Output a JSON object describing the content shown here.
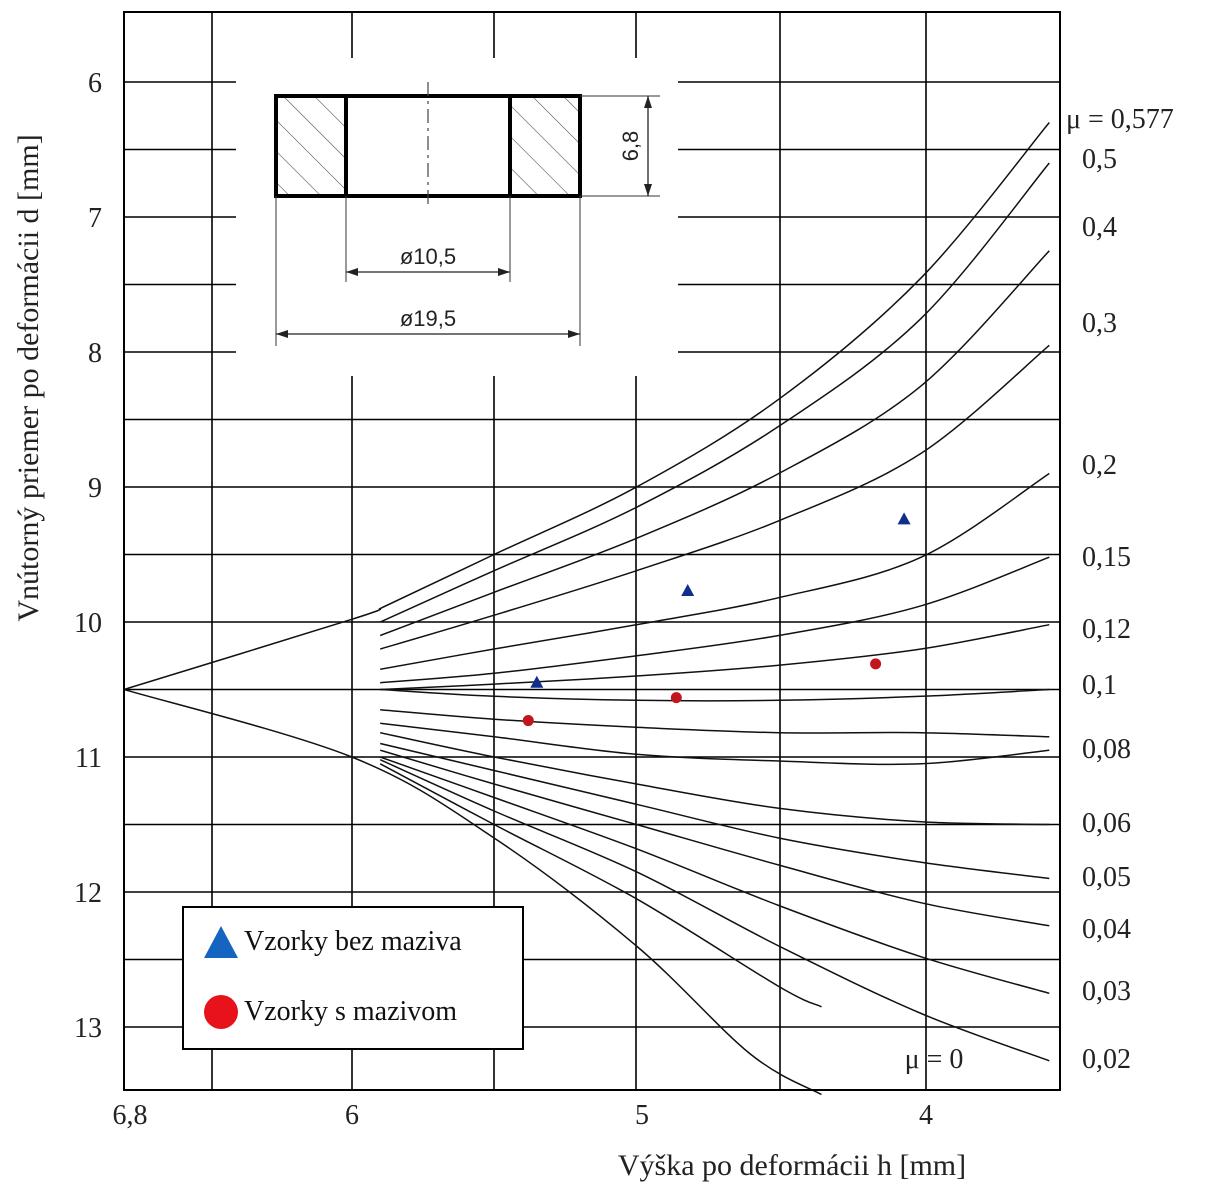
{
  "chart_data": {
    "type": "line",
    "title": "",
    "xlabel": "Výška po deformácii h [mm]",
    "ylabel": "Vnútorný priemer po deformácii d [mm]",
    "xlim": [
      6.8,
      3.55
    ],
    "ylim": [
      5.55,
      13.5
    ],
    "x_inverted": true,
    "y_inverted": true,
    "grid": true,
    "x_ticks": [
      {
        "value": 6.8,
        "label": "6,8"
      },
      {
        "value": 6.0,
        "label": "6"
      },
      {
        "value": 5.0,
        "label": "5"
      },
      {
        "value": 4.0,
        "label": "4"
      }
    ],
    "y_ticks": [
      {
        "value": 6,
        "label": "6"
      },
      {
        "value": 7,
        "label": "7"
      },
      {
        "value": 8,
        "label": "8"
      },
      {
        "value": 9,
        "label": "9"
      },
      {
        "value": 10,
        "label": "10"
      },
      {
        "value": 11,
        "label": "11"
      },
      {
        "value": 12,
        "label": "12"
      },
      {
        "value": 13,
        "label": "13"
      }
    ],
    "calibration_curves": [
      {
        "label": "μ = 0,577",
        "points": [
          [
            5.9,
            9.9
          ],
          [
            5.5,
            9.5
          ],
          [
            5.0,
            9.0
          ],
          [
            4.5,
            8.35
          ],
          [
            4.0,
            7.45
          ],
          [
            3.55,
            6.3
          ]
        ]
      },
      {
        "label": "0,5",
        "points": [
          [
            5.9,
            10.0
          ],
          [
            5.5,
            9.62
          ],
          [
            5.0,
            9.15
          ],
          [
            4.5,
            8.55
          ],
          [
            4.0,
            7.75
          ],
          [
            3.55,
            6.6
          ]
        ]
      },
      {
        "label": "0,4",
        "points": [
          [
            5.9,
            10.1
          ],
          [
            5.5,
            9.78
          ],
          [
            5.0,
            9.38
          ],
          [
            4.5,
            8.9
          ],
          [
            4.0,
            8.25
          ],
          [
            3.55,
            7.25
          ]
        ]
      },
      {
        "label": "0,3",
        "points": [
          [
            5.9,
            10.2
          ],
          [
            5.5,
            9.95
          ],
          [
            5.0,
            9.62
          ],
          [
            4.5,
            9.25
          ],
          [
            4.0,
            8.75
          ],
          [
            3.55,
            7.95
          ]
        ]
      },
      {
        "label": "0,2",
        "points": [
          [
            5.9,
            10.35
          ],
          [
            5.5,
            10.2
          ],
          [
            5.0,
            10.02
          ],
          [
            4.5,
            9.82
          ],
          [
            4.0,
            9.52
          ],
          [
            3.55,
            8.9
          ]
        ]
      },
      {
        "label": "0,15",
        "points": [
          [
            5.9,
            10.45
          ],
          [
            5.5,
            10.38
          ],
          [
            5.0,
            10.25
          ],
          [
            4.5,
            10.1
          ],
          [
            4.0,
            9.88
          ],
          [
            3.55,
            9.52
          ]
        ]
      },
      {
        "label": "0,12",
        "points": [
          [
            5.9,
            10.5
          ],
          [
            5.5,
            10.46
          ],
          [
            5.0,
            10.4
          ],
          [
            4.5,
            10.32
          ],
          [
            4.0,
            10.2
          ],
          [
            3.55,
            10.02
          ]
        ]
      },
      {
        "label": "0,1",
        "points": [
          [
            5.9,
            10.5
          ],
          [
            5.5,
            10.55
          ],
          [
            5.0,
            10.58
          ],
          [
            4.5,
            10.58
          ],
          [
            4.0,
            10.55
          ],
          [
            3.55,
            10.5
          ]
        ]
      },
      {
        "label": "0,08",
        "points": [
          [
            5.9,
            10.65
          ],
          [
            5.5,
            10.72
          ],
          [
            5.0,
            10.78
          ],
          [
            4.5,
            10.82
          ],
          [
            4.0,
            10.82
          ],
          [
            3.55,
            10.85
          ]
        ]
      },
      {
        "label": "",
        "points": [
          [
            5.9,
            10.75
          ],
          [
            5.5,
            10.85
          ],
          [
            5.0,
            10.98
          ],
          [
            4.5,
            11.03
          ],
          [
            4.0,
            11.05
          ],
          [
            3.55,
            10.95
          ]
        ]
      },
      {
        "label": "0,06",
        "points": [
          [
            5.9,
            10.82
          ],
          [
            5.5,
            11.0
          ],
          [
            5.0,
            11.2
          ],
          [
            4.5,
            11.38
          ],
          [
            4.0,
            11.48
          ],
          [
            3.55,
            11.5
          ]
        ]
      },
      {
        "label": "0,05",
        "points": [
          [
            5.9,
            10.9
          ],
          [
            5.5,
            11.1
          ],
          [
            5.0,
            11.35
          ],
          [
            4.5,
            11.6
          ],
          [
            4.0,
            11.78
          ],
          [
            3.55,
            11.9
          ]
        ]
      },
      {
        "label": "0,04",
        "points": [
          [
            5.9,
            10.95
          ],
          [
            5.5,
            11.2
          ],
          [
            5.0,
            11.5
          ],
          [
            4.5,
            11.8
          ],
          [
            4.0,
            12.08
          ],
          [
            3.55,
            12.25
          ]
        ]
      },
      {
        "label": "0,03",
        "points": [
          [
            5.9,
            11.0
          ],
          [
            5.5,
            11.3
          ],
          [
            5.0,
            11.68
          ],
          [
            4.5,
            12.1
          ],
          [
            4.0,
            12.48
          ],
          [
            3.55,
            12.75
          ]
        ]
      },
      {
        "label": "0,02",
        "points": [
          [
            5.9,
            11.02
          ],
          [
            5.5,
            11.4
          ],
          [
            5.0,
            11.85
          ],
          [
            4.5,
            12.4
          ],
          [
            4.0,
            12.9
          ],
          [
            3.55,
            13.25
          ]
        ]
      },
      {
        "label": "",
        "points": [
          [
            5.9,
            11.05
          ],
          [
            5.5,
            11.5
          ],
          [
            5.0,
            12.05
          ],
          [
            4.5,
            12.7
          ],
          [
            4.35,
            12.85
          ]
        ]
      },
      {
        "label": "μ = 0",
        "points": [
          [
            6.8,
            10.5
          ],
          [
            6.0,
            11.0
          ],
          [
            5.5,
            11.6
          ],
          [
            5.0,
            12.4
          ],
          [
            4.6,
            13.2
          ],
          [
            4.35,
            13.5
          ]
        ]
      },
      {
        "label": "",
        "points": [
          [
            6.8,
            10.5
          ],
          [
            6.0,
            9.98
          ],
          [
            5.9,
            9.9
          ]
        ]
      }
    ],
    "series": [
      {
        "name": "Vzorky bez maziva",
        "marker": "triangle",
        "color": "#0f2f8a",
        "points": [
          [
            5.35,
            10.45
          ],
          [
            4.82,
            9.77
          ],
          [
            4.06,
            9.24
          ]
        ]
      },
      {
        "name": "Vzorky s mazivom",
        "marker": "circle",
        "color": "#c0161c",
        "points": [
          [
            5.38,
            10.73
          ],
          [
            4.86,
            10.56
          ],
          [
            4.16,
            10.31
          ]
        ]
      }
    ],
    "inset": {
      "dim_height": "6,8",
      "dim_inner": "ø10,5",
      "dim_outer": "ø19,5"
    }
  },
  "legend": {
    "items": [
      {
        "label": "Vzorky bez maziva",
        "marker": "triangle",
        "color": "#1565c0"
      },
      {
        "label": "Vzorky s mazivom",
        "marker": "circle",
        "color": "#e8121a"
      }
    ]
  }
}
